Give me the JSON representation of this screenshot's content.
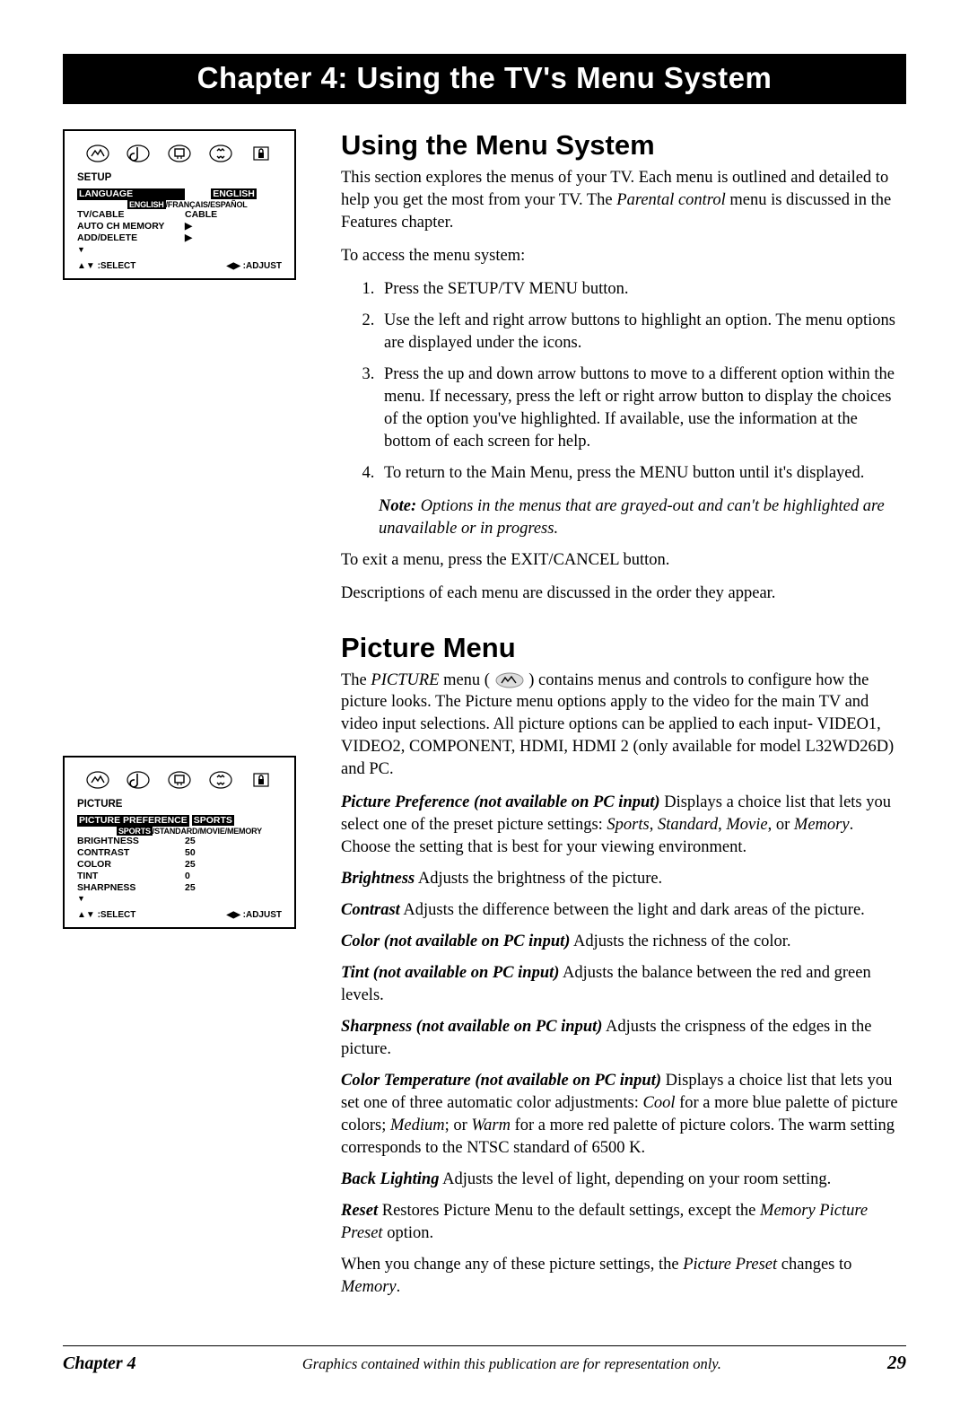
{
  "chapter_banner": "Chapter 4: Using the TV's Menu System",
  "screens": {
    "setup": {
      "title": "SETUP",
      "rows": [
        {
          "key": "LANGUAGE",
          "val": "ENGLISH",
          "val_inv": true
        },
        {
          "key": "TV/CABLE",
          "val": "CABLE"
        },
        {
          "key": "AUTO CH MEMORY",
          "val": "▶"
        },
        {
          "key": "ADD/DELETE",
          "val": "▶"
        }
      ],
      "sub_line_parts": {
        "inv": "ENGLISH",
        "rest": "/FRANÇAIS/ESPAÑOL"
      },
      "footer": {
        "left": "▲▼ :SELECT",
        "right": "◀▶  :ADJUST"
      }
    },
    "picture": {
      "title": "PICTURE",
      "rows": [
        {
          "key": "PICTURE PREFERENCE",
          "val": "SPORTS",
          "val_inv": true,
          "tight": true
        },
        {
          "key": "BRIGHTNESS",
          "val": "25"
        },
        {
          "key": "CONTRAST",
          "val": "50"
        },
        {
          "key": "COLOR",
          "val": "25"
        },
        {
          "key": "TINT",
          "val": "0"
        },
        {
          "key": "SHARPNESS",
          "val": "25"
        }
      ],
      "sub_line_parts": {
        "inv": "SPORTS",
        "rest": "/STANDARD/MOVIE/MEMORY"
      },
      "footer": {
        "left": "▲▼ :SELECT",
        "right": "◀▶  :ADJUST"
      }
    }
  },
  "sections": {
    "using": {
      "heading": "Using the Menu System",
      "intro_a": "This section explores the menus of your TV. Each menu is outlined and detailed to help you get the most from your TV. The ",
      "intro_em": "Parental control",
      "intro_b": " menu is discussed in the Features chapter.",
      "access_lead": "To access the menu system:",
      "steps": [
        "Press the SETUP/TV MENU button.",
        "Use the left and right arrow buttons to highlight an option. The menu options are displayed under the icons.",
        "Press the up and down arrow buttons to move to a different option within the menu. If necessary, press the left or right arrow button to display the choices of the option you've highlighted. If available, use the information at the bottom of each screen for help.",
        "To return to the Main Menu, press the MENU button until it's displayed."
      ],
      "note_lead": "Note:",
      "note_body": " Options in the menus that are grayed-out and can't be highlighted are unavailable or in progress.",
      "exit": "To exit a menu, press the EXIT/CANCEL button.",
      "desc": "Descriptions of each menu are discussed in the order they appear."
    },
    "picture": {
      "heading": "Picture Menu",
      "intro_a": "The ",
      "intro_em1": "PICTURE",
      "intro_b": " menu (",
      "intro_c": ") contains menus and controls to configure how the picture looks. The Picture menu options apply to the video for the main TV and video input selections. All picture options can be applied to each input- VIDEO1, VIDEO2, COMPONENT, HDMI, HDMI 2 (only available for model L32WD26D) and PC.",
      "defs": [
        {
          "term": "Picture Preference (not available on PC input)",
          "body_a": "   Displays a choice list that lets you select one of the preset picture settings: ",
          "em1": "Sports",
          "body_b": ", ",
          "em2": "Standard",
          "body_c": ", ",
          "em3": "Movie",
          "body_d": ", or ",
          "em4": "Memory",
          "body_e": ". Choose the setting that is best for your viewing environment."
        },
        {
          "term": "Brightness",
          "body_a": "    Adjusts the brightness of the picture."
        },
        {
          "term": "Contrast",
          "body_a": "    Adjusts the difference between the light and dark areas of the picture."
        },
        {
          "term": "Color (not available on PC input)",
          "body_a": "    Adjusts the richness of the color."
        },
        {
          "term": "Tint (not available on PC input)",
          "body_a": "    Adjusts the balance between the red and green levels."
        },
        {
          "term": "Sharpness (not available on PC input)",
          "body_a": "    Adjusts the crispness of the edges in the picture."
        },
        {
          "term": "Color Temperature (not available on PC input)",
          "body_a": "  Displays a choice list that lets you set one of three automatic color adjustments: ",
          "em1": "Cool",
          "body_b": " for a more blue palette of picture colors; ",
          "em2": "Medium",
          "body_c": "; or ",
          "em3": "Warm",
          "body_d": " for a more red palette of picture colors. The warm setting corresponds to the NTSC standard of 6500 K."
        },
        {
          "term": "Back Lighting",
          "body_a": "    Adjusts the level of light, depending on your room setting."
        },
        {
          "term": "Reset",
          "body_a": "    Restores Picture Menu to the default settings, except the ",
          "em1": "Memory Picture Preset",
          "body_b": " option."
        }
      ],
      "closing_a": "When you change any of these picture settings, the ",
      "closing_em": "Picture Preset",
      "closing_b": " changes to ",
      "closing_em2": "Memory",
      "closing_c": "."
    }
  },
  "footer": {
    "chapter": "Chapter 4",
    "disclaimer": "Graphics contained within this publication are for representation only.",
    "page": "29"
  }
}
